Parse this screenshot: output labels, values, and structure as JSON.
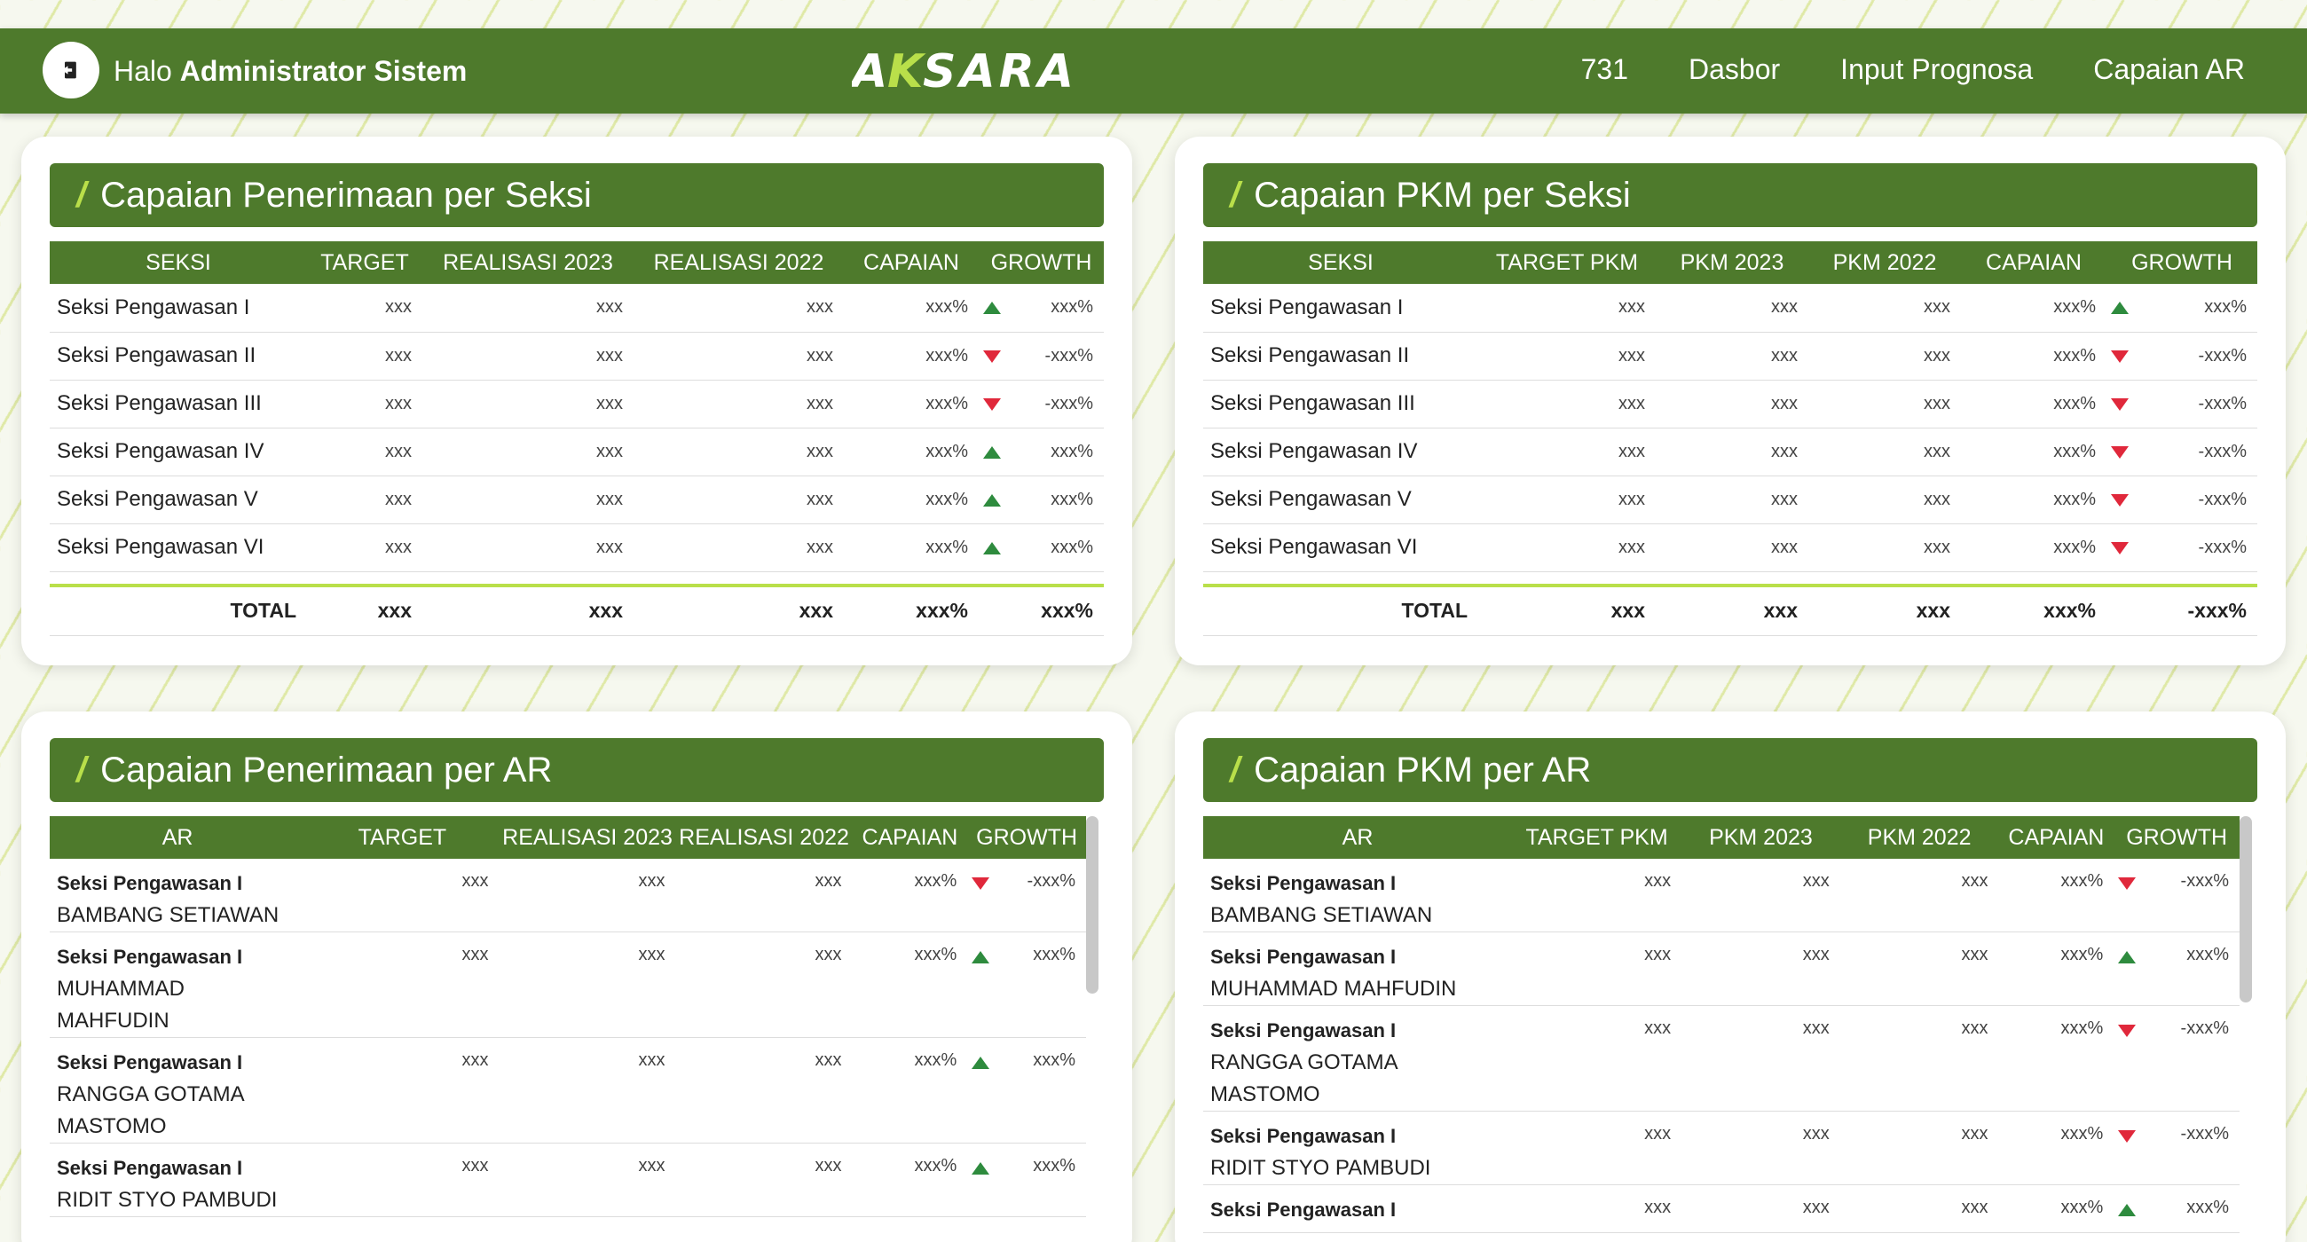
{
  "header": {
    "greeting_prefix": "Halo",
    "user_name": "Administrator Sistem",
    "brand": "AKSARA",
    "nav": [
      "731",
      "Dasbor",
      "Input Prognosa",
      "Capaian AR"
    ]
  },
  "cards": {
    "penerimaan_seksi": {
      "title": "Capaian Penerimaan per Seksi",
      "columns": [
        "SEKSI",
        "TARGET",
        "REALISASI 2023",
        "REALISASI 2022",
        "CAPAIAN",
        "GROWTH"
      ],
      "rows": [
        {
          "name": "Seksi Pengawasan I",
          "target": "xxx",
          "r1": "xxx",
          "r2": "xxx",
          "capaian": "xxx%",
          "trend": "up",
          "growth": "xxx%"
        },
        {
          "name": "Seksi Pengawasan II",
          "target": "xxx",
          "r1": "xxx",
          "r2": "xxx",
          "capaian": "xxx%",
          "trend": "down",
          "growth": "-xxx%"
        },
        {
          "name": "Seksi Pengawasan III",
          "target": "xxx",
          "r1": "xxx",
          "r2": "xxx",
          "capaian": "xxx%",
          "trend": "down",
          "growth": "-xxx%"
        },
        {
          "name": "Seksi Pengawasan IV",
          "target": "xxx",
          "r1": "xxx",
          "r2": "xxx",
          "capaian": "xxx%",
          "trend": "up",
          "growth": "xxx%"
        },
        {
          "name": "Seksi Pengawasan V",
          "target": "xxx",
          "r1": "xxx",
          "r2": "xxx",
          "capaian": "xxx%",
          "trend": "up",
          "growth": "xxx%"
        },
        {
          "name": "Seksi Pengawasan VI",
          "target": "xxx",
          "r1": "xxx",
          "r2": "xxx",
          "capaian": "xxx%",
          "trend": "up",
          "growth": "xxx%"
        }
      ],
      "total": {
        "label": "TOTAL",
        "target": "xxx",
        "r1": "xxx",
        "r2": "xxx",
        "capaian": "xxx%",
        "growth": "xxx%"
      }
    },
    "pkm_seksi": {
      "title": "Capaian PKM per Seksi",
      "columns": [
        "SEKSI",
        "TARGET PKM",
        "PKM 2023",
        "PKM 2022",
        "CAPAIAN",
        "GROWTH"
      ],
      "rows": [
        {
          "name": "Seksi Pengawasan I",
          "target": "xxx",
          "r1": "xxx",
          "r2": "xxx",
          "capaian": "xxx%",
          "trend": "up",
          "growth": "xxx%"
        },
        {
          "name": "Seksi Pengawasan II",
          "target": "xxx",
          "r1": "xxx",
          "r2": "xxx",
          "capaian": "xxx%",
          "trend": "down",
          "growth": "-xxx%"
        },
        {
          "name": "Seksi Pengawasan III",
          "target": "xxx",
          "r1": "xxx",
          "r2": "xxx",
          "capaian": "xxx%",
          "trend": "down",
          "growth": "-xxx%"
        },
        {
          "name": "Seksi Pengawasan IV",
          "target": "xxx",
          "r1": "xxx",
          "r2": "xxx",
          "capaian": "xxx%",
          "trend": "down",
          "growth": "-xxx%"
        },
        {
          "name": "Seksi Pengawasan V",
          "target": "xxx",
          "r1": "xxx",
          "r2": "xxx",
          "capaian": "xxx%",
          "trend": "down",
          "growth": "-xxx%"
        },
        {
          "name": "Seksi Pengawasan VI",
          "target": "xxx",
          "r1": "xxx",
          "r2": "xxx",
          "capaian": "xxx%",
          "trend": "down",
          "growth": "-xxx%"
        }
      ],
      "total": {
        "label": "TOTAL",
        "target": "xxx",
        "r1": "xxx",
        "r2": "xxx",
        "capaian": "xxx%",
        "growth": "-xxx%"
      }
    },
    "penerimaan_ar": {
      "title": "Capaian Penerimaan per AR",
      "columns": [
        "AR",
        "TARGET",
        "REALISASI 2023",
        "REALISASI 2022",
        "CAPAIAN",
        "GROWTH"
      ],
      "rows": [
        {
          "seksi": "Seksi Pengawasan I",
          "ar": [
            "BAMBANG SETIAWAN"
          ],
          "target": "xxx",
          "r1": "xxx",
          "r2": "xxx",
          "capaian": "xxx%",
          "trend": "down",
          "growth": "-xxx%"
        },
        {
          "seksi": "Seksi Pengawasan I",
          "ar": [
            "MUHAMMAD",
            "MAHFUDIN"
          ],
          "target": "xxx",
          "r1": "xxx",
          "r2": "xxx",
          "capaian": "xxx%",
          "trend": "up",
          "growth": "xxx%"
        },
        {
          "seksi": "Seksi Pengawasan I",
          "ar": [
            "RANGGA GOTAMA",
            "MASTOMO"
          ],
          "target": "xxx",
          "r1": "xxx",
          "r2": "xxx",
          "capaian": "xxx%",
          "trend": "up",
          "growth": "xxx%"
        },
        {
          "seksi": "Seksi Pengawasan I",
          "ar": [
            "RIDIT STYO PAMBUDI"
          ],
          "target": "xxx",
          "r1": "xxx",
          "r2": "xxx",
          "capaian": "xxx%",
          "trend": "up",
          "growth": "xxx%"
        }
      ]
    },
    "pkm_ar": {
      "title": "Capaian PKM per AR",
      "columns": [
        "AR",
        "TARGET PKM",
        "PKM 2023",
        "PKM 2022",
        "CAPAIAN",
        "GROWTH"
      ],
      "rows": [
        {
          "seksi": "Seksi Pengawasan I",
          "ar": [
            "BAMBANG SETIAWAN"
          ],
          "target": "xxx",
          "r1": "xxx",
          "r2": "xxx",
          "capaian": "xxx%",
          "trend": "down",
          "growth": "-xxx%"
        },
        {
          "seksi": "Seksi Pengawasan I",
          "ar": [
            "MUHAMMAD MAHFUDIN"
          ],
          "target": "xxx",
          "r1": "xxx",
          "r2": "xxx",
          "capaian": "xxx%",
          "trend": "up",
          "growth": "xxx%"
        },
        {
          "seksi": "Seksi Pengawasan I",
          "ar": [
            "RANGGA GOTAMA",
            "MASTOMO"
          ],
          "target": "xxx",
          "r1": "xxx",
          "r2": "xxx",
          "capaian": "xxx%",
          "trend": "down",
          "growth": "-xxx%"
        },
        {
          "seksi": "Seksi Pengawasan I",
          "ar": [
            "RIDIT STYO PAMBUDI"
          ],
          "target": "xxx",
          "r1": "xxx",
          "r2": "xxx",
          "capaian": "xxx%",
          "trend": "down",
          "growth": "-xxx%"
        },
        {
          "seksi": "Seksi Pengawasan I",
          "ar": [],
          "target": "xxx",
          "r1": "xxx",
          "r2": "xxx",
          "capaian": "xxx%",
          "trend": "up",
          "growth": "xxx%"
        }
      ]
    }
  },
  "colors": {
    "primary": "#4e7a2c",
    "accent": "#b9df4a",
    "up": "#2e8b3e",
    "down": "#e0283b"
  }
}
